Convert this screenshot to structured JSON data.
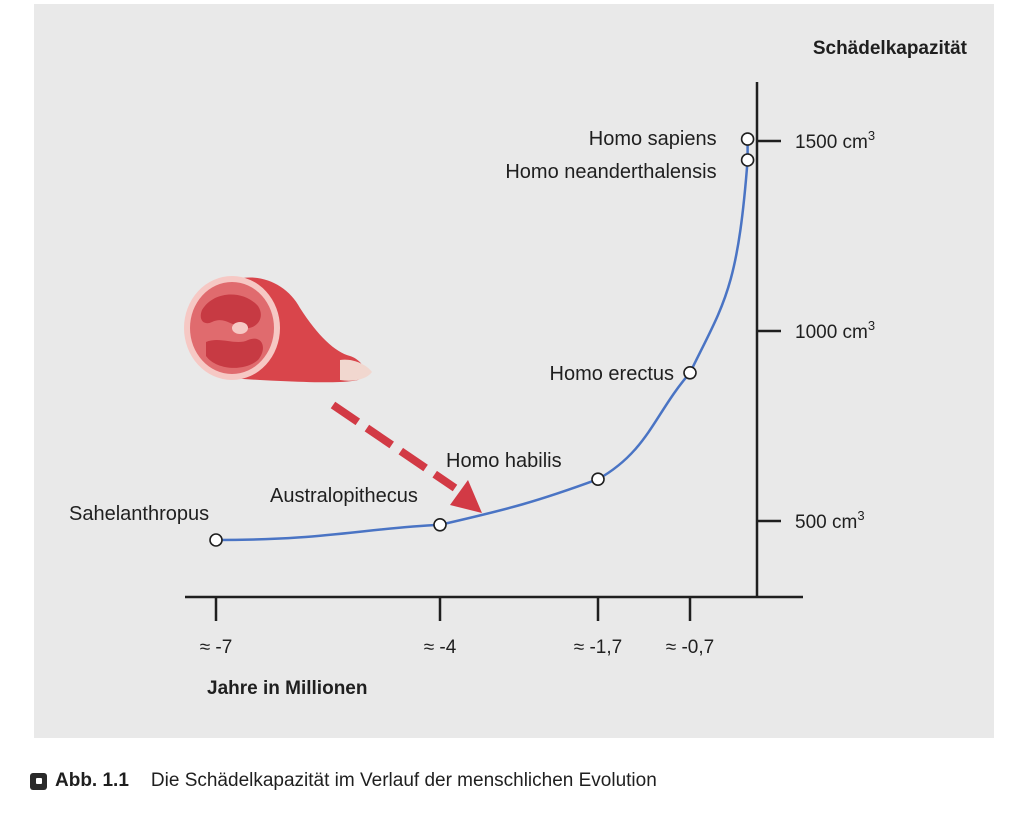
{
  "chart_data": {
    "type": "line",
    "title": "",
    "ylabel": "Schädelkapazität",
    "xlabel": "Jahre in Millionen",
    "x_ticks": [
      "≈ -7",
      "≈ -4",
      "≈ -1,7",
      "≈ -0,7"
    ],
    "x_tick_values": [
      -7,
      -4,
      -1.7,
      -0.7
    ],
    "y_ticks": [
      {
        "value": 500,
        "label": "500 cm",
        "sup": "3"
      },
      {
        "value": 1000,
        "label": "1000 cm",
        "sup": "3"
      },
      {
        "value": 1500,
        "label": "1500 cm",
        "sup": "3"
      }
    ],
    "ylim": [
      290,
      1610
    ],
    "xlim": [
      -7.4,
      0.8
    ],
    "series": [
      {
        "color": "#4a74c4",
        "points": [
          {
            "label": "Sahelanthropus",
            "x": -7,
            "y": 450
          },
          {
            "label": "Australopithecus",
            "x": -4,
            "y": 490
          },
          {
            "label": "Homo habilis",
            "x": -1.7,
            "y": 610
          },
          {
            "label": "Homo erectus",
            "x": -0.7,
            "y": 890
          },
          {
            "label": "Homo neanderthalensis",
            "x": -0.1,
            "y": 1450
          },
          {
            "label": "Homo sapiens",
            "x": -0.1,
            "y": 1505
          }
        ]
      }
    ],
    "grid": false,
    "annotations": [
      "meat-illustration",
      "dashed-arrow"
    ]
  },
  "colors": {
    "background": "#e9e9e9",
    "curve": "#4a74c4",
    "axis": "#1f1f1f",
    "arrow": "#d23a45",
    "meat": "#d9454b"
  },
  "caption": {
    "number": "Abb. 1.1",
    "text": "Die Schädelkapazität im Verlauf der menschlichen Evolution"
  }
}
